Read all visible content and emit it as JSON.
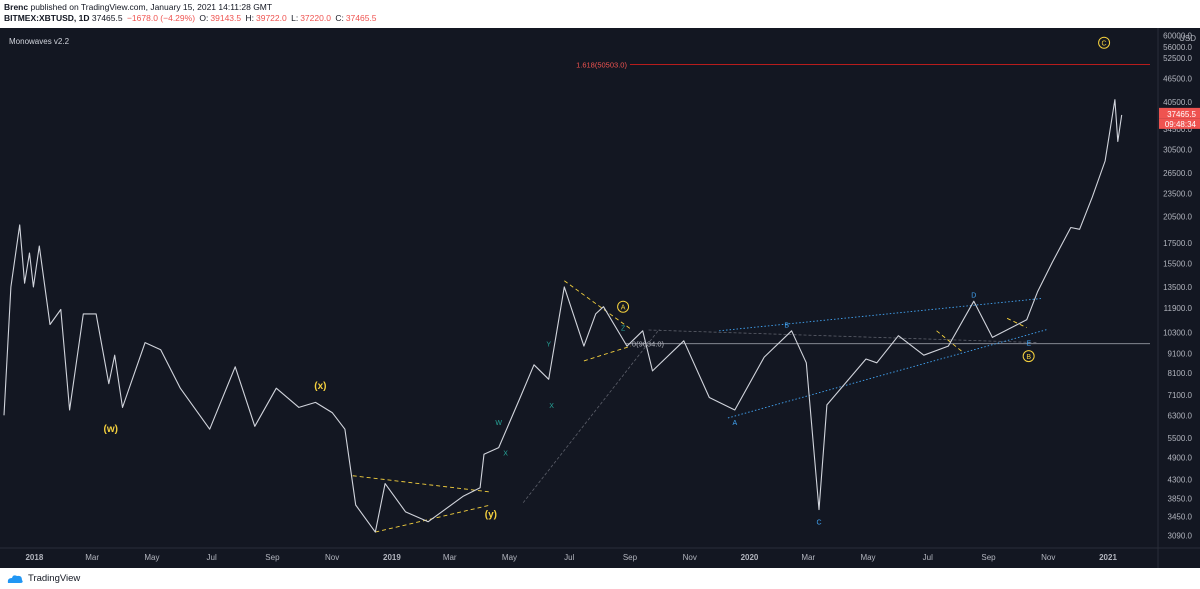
{
  "header": {
    "author": "Brenc",
    "published": "published on TradingView.com, January 15, 2021 14:11:28 GMT",
    "symbol": "BITMEX:XBTUSD, 1D",
    "last": "37465.5",
    "change": "−1678.0 (−4.29%)",
    "open_label": "O:",
    "open": "39143.5",
    "high_label": "H:",
    "high": "39722.0",
    "low_label": "L:",
    "low": "37220.0",
    "close_label": "C:",
    "close": "37465.5"
  },
  "indicator": "Monowaves v2.2",
  "footer": {
    "brand": "TradingView",
    "logo_icon": "tradingview-logo-icon"
  },
  "colors": {
    "background": "#131722",
    "price_line": "#d1d4dc",
    "fib_line": "#b71c1c",
    "accent_yellow": "#f5d13e",
    "wave_teal": "#26a69a",
    "wave_blue": "#42a5f5",
    "last_price": "#ef5350"
  },
  "chart_data": {
    "type": "line",
    "xlabel": "",
    "ylabel": "",
    "y_unit": "USD",
    "y_scale": "log",
    "ylim": [
      2900,
      62000
    ],
    "grid": false,
    "x_ticks": [
      "2018",
      "Mar",
      "May",
      "Jul",
      "Sep",
      "Nov",
      "2019",
      "Mar",
      "May",
      "Jul",
      "Sep",
      "Nov",
      "2020",
      "Mar",
      "May",
      "Jul",
      "Sep",
      "Nov",
      "2021"
    ],
    "y_ticks": [
      "60000.0",
      "56000.0",
      "52500.0",
      "46500.0",
      "40500.0",
      "34500.0",
      "30500.0",
      "26500.0",
      "23500.0",
      "20500.0",
      "17500.0",
      "15500.0",
      "13500.0",
      "11900.0",
      "10300.0",
      "9100.0",
      "8100.0",
      "7100.0",
      "6300.0",
      "5500.0",
      "4900.0",
      "4300.0",
      "3850.0",
      "3450.0",
      "3090.0"
    ],
    "last_price_label": "37465.5",
    "countdown_label": "09:48:34",
    "fib_label": "1.618(50503.0)",
    "fib_level": 50503.0,
    "price_series": [
      {
        "x": "2017-12-01",
        "y": 6300
      },
      {
        "x": "2017-12-08",
        "y": 13500
      },
      {
        "x": "2017-12-17",
        "y": 19500
      },
      {
        "x": "2017-12-22",
        "y": 13800
      },
      {
        "x": "2017-12-27",
        "y": 16500
      },
      {
        "x": "2017-12-31",
        "y": 13500
      },
      {
        "x": "2018-01-06",
        "y": 17200
      },
      {
        "x": "2018-01-17",
        "y": 10800
      },
      {
        "x": "2018-01-28",
        "y": 11800
      },
      {
        "x": "2018-02-06",
        "y": 6500
      },
      {
        "x": "2018-02-20",
        "y": 11500
      },
      {
        "x": "2018-03-05",
        "y": 11500
      },
      {
        "x": "2018-03-18",
        "y": 7600
      },
      {
        "x": "2018-03-24",
        "y": 9000
      },
      {
        "x": "2018-04-01",
        "y": 6600
      },
      {
        "x": "2018-04-24",
        "y": 9700
      },
      {
        "x": "2018-05-10",
        "y": 9300
      },
      {
        "x": "2018-05-30",
        "y": 7400
      },
      {
        "x": "2018-06-29",
        "y": 5800
      },
      {
        "x": "2018-07-25",
        "y": 8400
      },
      {
        "x": "2018-08-14",
        "y": 5900
      },
      {
        "x": "2018-09-05",
        "y": 7400
      },
      {
        "x": "2018-09-28",
        "y": 6600
      },
      {
        "x": "2018-10-15",
        "y": 6800
      },
      {
        "x": "2018-11-01",
        "y": 6400
      },
      {
        "x": "2018-11-14",
        "y": 5800
      },
      {
        "x": "2018-11-25",
        "y": 3700
      },
      {
        "x": "2018-12-15",
        "y": 3150
      },
      {
        "x": "2018-12-25",
        "y": 4200
      },
      {
        "x": "2019-01-15",
        "y": 3550
      },
      {
        "x": "2019-02-07",
        "y": 3350
      },
      {
        "x": "2019-03-15",
        "y": 3900
      },
      {
        "x": "2019-04-01",
        "y": 4100
      },
      {
        "x": "2019-04-05",
        "y": 5000
      },
      {
        "x": "2019-04-20",
        "y": 5200
      },
      {
        "x": "2019-05-12",
        "y": 7000
      },
      {
        "x": "2019-05-26",
        "y": 8500
      },
      {
        "x": "2019-06-10",
        "y": 7800
      },
      {
        "x": "2019-06-26",
        "y": 13500
      },
      {
        "x": "2019-07-16",
        "y": 9500
      },
      {
        "x": "2019-07-28",
        "y": 11500
      },
      {
        "x": "2019-08-05",
        "y": 12000
      },
      {
        "x": "2019-08-29",
        "y": 9500
      },
      {
        "x": "2019-09-14",
        "y": 10400
      },
      {
        "x": "2019-09-24",
        "y": 8200
      },
      {
        "x": "2019-10-26",
        "y": 9800
      },
      {
        "x": "2019-11-21",
        "y": 7000
      },
      {
        "x": "2019-12-17",
        "y": 6500
      },
      {
        "x": "2020-01-16",
        "y": 8900
      },
      {
        "x": "2020-02-13",
        "y": 10400
      },
      {
        "x": "2020-02-28",
        "y": 8600
      },
      {
        "x": "2020-03-12",
        "y": 3600
      },
      {
        "x": "2020-03-20",
        "y": 6700
      },
      {
        "x": "2020-04-29",
        "y": 8800
      },
      {
        "x": "2020-05-10",
        "y": 8600
      },
      {
        "x": "2020-06-01",
        "y": 10100
      },
      {
        "x": "2020-06-27",
        "y": 9000
      },
      {
        "x": "2020-07-22",
        "y": 9500
      },
      {
        "x": "2020-08-17",
        "y": 12400
      },
      {
        "x": "2020-09-05",
        "y": 10000
      },
      {
        "x": "2020-10-10",
        "y": 11100
      },
      {
        "x": "2020-10-21",
        "y": 13100
      },
      {
        "x": "2020-11-05",
        "y": 15600
      },
      {
        "x": "2020-11-24",
        "y": 19200
      },
      {
        "x": "2020-12-03",
        "y": 19000
      },
      {
        "x": "2020-12-16",
        "y": 23000
      },
      {
        "x": "2020-12-29",
        "y": 28500
      },
      {
        "x": "2021-01-08",
        "y": 41000
      },
      {
        "x": "2021-01-11",
        "y": 32000
      },
      {
        "x": "2021-01-15",
        "y": 37465.5
      }
    ],
    "wave_labels": [
      {
        "text": "(w)",
        "x": "2018-03-20",
        "y": 5800,
        "color": "#f5d13e"
      },
      {
        "text": "(x)",
        "x": "2018-10-20",
        "y": 7500,
        "color": "#f5d13e"
      },
      {
        "text": "(y)",
        "x": "2019-04-12",
        "y": 3500,
        "color": "#f5d13e"
      },
      {
        "text": "A",
        "x": "2019-08-25",
        "y": 12000,
        "color": "#f5d13e",
        "circled": true
      },
      {
        "text": "B",
        "x": "2020-10-12",
        "y": 8950,
        "color": "#f5d13e",
        "circled": true
      },
      {
        "text": "C",
        "x": "2020-12-28",
        "y": 57500,
        "color": "#f5d13e",
        "circled": true
      },
      {
        "text": "W",
        "x": "2019-04-20",
        "y": 6050,
        "color": "#26a69a"
      },
      {
        "text": "X",
        "x": "2019-04-27",
        "y": 5050,
        "color": "#26a69a"
      },
      {
        "text": "Y",
        "x": "2019-06-10",
        "y": 9650,
        "color": "#26a69a"
      },
      {
        "text": "X",
        "x": "2019-06-13",
        "y": 6700,
        "color": "#26a69a"
      },
      {
        "text": "Z",
        "x": "2019-08-25",
        "y": 10600,
        "color": "#26a69a"
      },
      {
        "text": "A",
        "x": "2019-12-17",
        "y": 6050,
        "color": "#42a5f5"
      },
      {
        "text": "B",
        "x": "2020-02-08",
        "y": 10800,
        "color": "#42a5f5"
      },
      {
        "text": "C",
        "x": "2020-03-12",
        "y": 3350,
        "color": "#42a5f5"
      },
      {
        "text": "D",
        "x": "2020-08-17",
        "y": 12900,
        "color": "#42a5f5"
      },
      {
        "text": "E",
        "x": "2020-10-12",
        "y": 9700,
        "color": "#42a5f5"
      }
    ],
    "annotations": [
      {
        "text": "0(9634.0)",
        "x": "2019-09-03",
        "y": 9634,
        "color": "#b2b5be"
      }
    ]
  }
}
